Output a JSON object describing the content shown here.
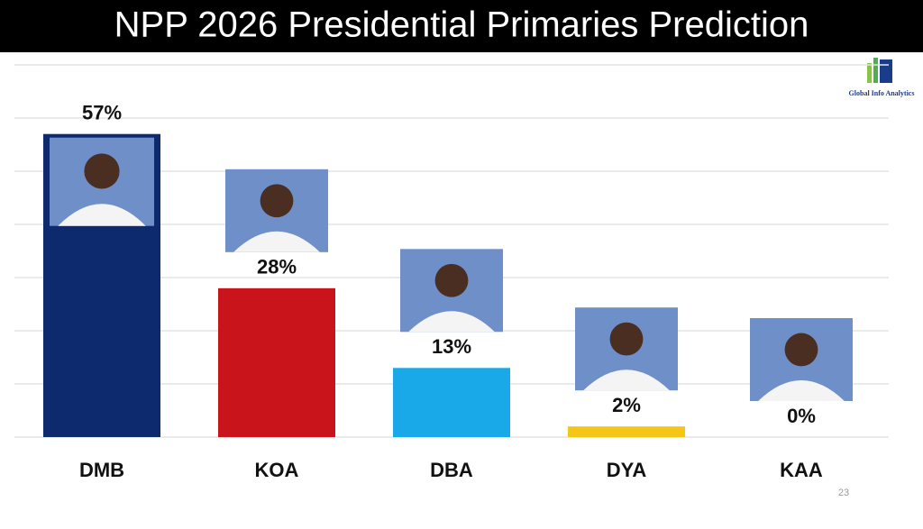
{
  "chart_data": {
    "type": "bar",
    "title": "NPP 2026 Presidential Primaries Prediction",
    "source": "Global Info Analytics",
    "categories": [
      "DMB",
      "KOA",
      "DBA",
      "DYA",
      "KAA"
    ],
    "values": [
      57,
      28,
      13,
      2,
      0
    ],
    "value_labels": [
      "57%",
      "28%",
      "13%",
      "2%",
      "0%"
    ],
    "colors": [
      "#0d2a6e",
      "#c8141a",
      "#1aa9e8",
      "#f5c518",
      "#c8141a"
    ],
    "ylim": [
      0,
      70
    ],
    "yticks": [
      0,
      10,
      20,
      30,
      40,
      50,
      60,
      70
    ],
    "grid": true
  },
  "slide_number": 23
}
